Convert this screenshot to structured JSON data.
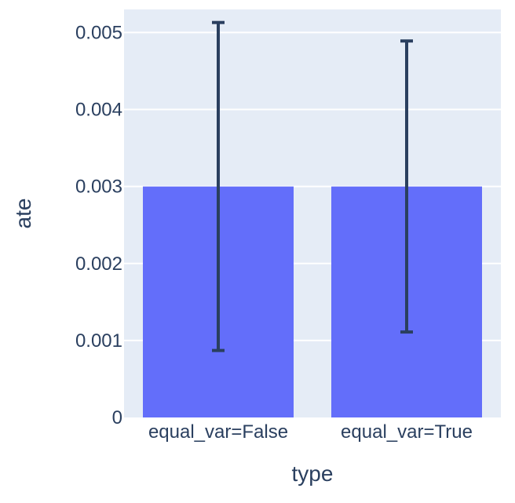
{
  "chart_data": {
    "type": "bar",
    "title": "",
    "xlabel": "type",
    "ylabel": "ate",
    "categories": [
      "equal_var=False",
      "equal_var=True"
    ],
    "series": [
      {
        "values": [
          0.003,
          0.003
        ],
        "error_upper": [
          0.00513,
          0.00489
        ],
        "error_lower": [
          0.00087,
          0.00111
        ]
      }
    ],
    "ylim": [
      0,
      0.0053
    ],
    "yticks": [
      0,
      0.001,
      0.002,
      0.003,
      0.004,
      0.005
    ],
    "ytick_labels": [
      "0",
      "0.001",
      "0.002",
      "0.003",
      "0.004",
      "0.005"
    ],
    "grid": true,
    "legend": "none",
    "colors": {
      "bar": "#636efa",
      "errorbar": "#2a3f5f",
      "plot_bg": "#e5ecf6",
      "grid": "#ffffff",
      "text": "#2a3f5f"
    }
  }
}
